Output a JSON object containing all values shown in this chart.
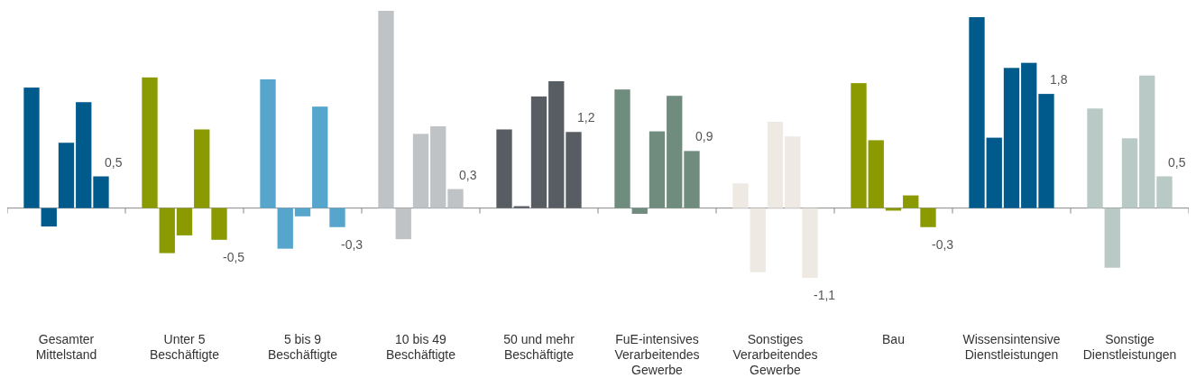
{
  "chart_data": {
    "type": "bar",
    "categories": [
      "Gesamter\nMittelstand",
      "Unter 5\nBeschäftigte",
      "5 bis 9\nBeschäftigte",
      "10 bis 49\nBeschäftigte",
      "50 und mehr\nBeschäftigte",
      "FuE-intensives\nVerarbeitendes\nGewerbe",
      "Sonstiges\nVerarbeitendes\nGewerbe",
      "Bau",
      "Wissensintensive\nDienstleistungen",
      "Sonstige\nDienstleistungen"
    ],
    "series": [
      {
        "colors": [
          "#005a8c",
          "#8a9a00",
          "#55a5cc",
          "#bfc3c6",
          "#575d62",
          "#6f8c7e",
          "#efe9e4",
          "#8a9a00",
          "#005a8c",
          "#b9c9c5"
        ],
        "values": [
          1.9,
          2.06,
          2.03,
          3.11,
          1.24,
          1.87,
          0.39,
          1.97,
          3.01,
          1.57
        ]
      },
      {
        "colors": [
          "#005a8c",
          "#8a9a00",
          "#55a5cc",
          "#bfc3c6",
          "#575d62",
          "#6f8c7e",
          "#efe9e4",
          "#8a9a00",
          "#005a8c",
          "#b9c9c5"
        ],
        "values": [
          -0.29,
          -0.71,
          -0.64,
          -0.49,
          0.03,
          -0.09,
          -1.01,
          1.07,
          1.11,
          -0.94
        ]
      },
      {
        "colors": [
          "#005a8c",
          "#8a9a00",
          "#55a5cc",
          "#bfc3c6",
          "#575d62",
          "#6f8c7e",
          "#efe9e4",
          "#8a9a00",
          "#005a8c",
          "#b9c9c5"
        ],
        "values": [
          1.03,
          -0.43,
          -0.13,
          1.17,
          1.76,
          1.21,
          1.36,
          -0.04,
          2.21,
          1.1
        ]
      },
      {
        "colors": [
          "#005a8c",
          "#8a9a00",
          "#55a5cc",
          "#bfc3c6",
          "#575d62",
          "#6f8c7e",
          "#efe9e4",
          "#8a9a00",
          "#005a8c",
          "#b9c9c5"
        ],
        "values": [
          1.67,
          1.24,
          1.6,
          1.29,
          2.0,
          1.77,
          1.13,
          0.2,
          2.29,
          2.09
        ]
      },
      {
        "colors": [
          "#005a8c",
          "#8a9a00",
          "#55a5cc",
          "#bfc3c6",
          "#575d62",
          "#6f8c7e",
          "#efe9e4",
          "#8a9a00",
          "#005a8c",
          "#b9c9c5"
        ],
        "values": [
          0.5,
          -0.5,
          -0.3,
          0.3,
          1.2,
          0.9,
          -1.1,
          -0.3,
          1.8,
          0.5
        ],
        "value_labels": [
          "0,5",
          "-0,5",
          "-0,3",
          "0,3",
          "1,2",
          "0,9",
          "-1,1",
          "-0,3",
          "1,8",
          "0,5"
        ]
      }
    ],
    "tick_labels": "x"
  }
}
